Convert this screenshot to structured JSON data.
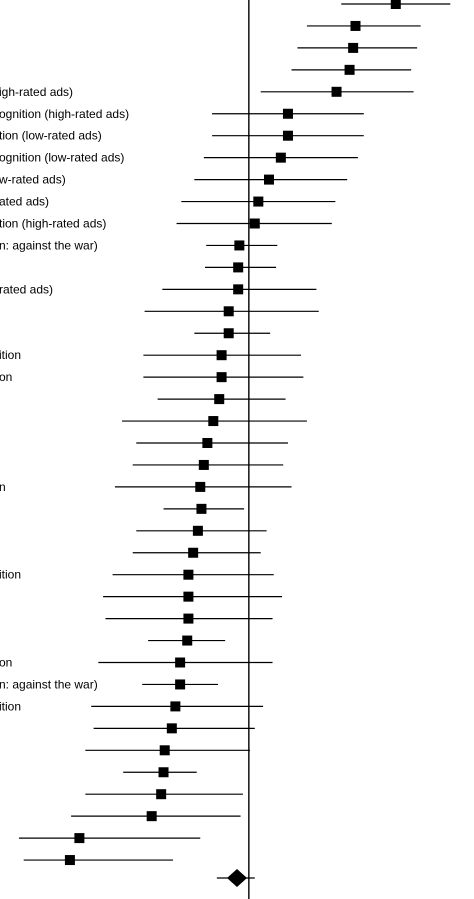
{
  "chart_data": {
    "type": "forest",
    "title": "",
    "xlabel": "",
    "ylabel": "",
    "reference_line": 0,
    "grid": false,
    "legend": "none",
    "x_unit": "left edge = -2.10, right edge = 1.90 (estimated effect-size scale)",
    "colors": {
      "ink": "#000000",
      "background": "#ffffff"
    },
    "rows": [
      {
        "label": "",
        "estimate": 1.24,
        "ci_low": 0.78,
        "ci_high": 1.7
      },
      {
        "label": "",
        "estimate": 0.9,
        "ci_low": 0.49,
        "ci_high": 1.45
      },
      {
        "label": "",
        "estimate": 0.88,
        "ci_low": 0.41,
        "ci_high": 1.42
      },
      {
        "label": "",
        "estimate": 0.85,
        "ci_low": 0.36,
        "ci_high": 1.37
      },
      {
        "label": "igh-rated ads)",
        "estimate": 0.74,
        "ci_low": 0.1,
        "ci_high": 1.39
      },
      {
        "label": "ognition (high-rated ads)",
        "estimate": 0.33,
        "ci_low": -0.31,
        "ci_high": 0.97
      },
      {
        "label": "tion (low-rated ads)",
        "estimate": 0.33,
        "ci_low": -0.31,
        "ci_high": 0.97
      },
      {
        "label": "ognition (low-rated ads)",
        "estimate": 0.27,
        "ci_low": -0.38,
        "ci_high": 0.92
      },
      {
        "label": "w-rated ads)",
        "estimate": 0.17,
        "ci_low": -0.46,
        "ci_high": 0.83
      },
      {
        "label": "ated ads)",
        "estimate": 0.08,
        "ci_low": -0.57,
        "ci_high": 0.73
      },
      {
        "label": "tion (high-rated ads)",
        "estimate": 0.05,
        "ci_low": -0.61,
        "ci_high": 0.7
      },
      {
        "label": "n: against the war)",
        "estimate": -0.08,
        "ci_low": -0.36,
        "ci_high": 0.24
      },
      {
        "label": "",
        "estimate": -0.09,
        "ci_low": -0.37,
        "ci_high": 0.23
      },
      {
        "label": "rated ads)",
        "estimate": -0.09,
        "ci_low": -0.73,
        "ci_high": 0.57
      },
      {
        "label": "",
        "estimate": -0.17,
        "ci_low": -0.88,
        "ci_high": 0.59
      },
      {
        "label": "",
        "estimate": -0.17,
        "ci_low": -0.46,
        "ci_high": 0.18
      },
      {
        "label": "ition",
        "estimate": -0.23,
        "ci_low": -0.89,
        "ci_high": 0.44
      },
      {
        "label": "on",
        "estimate": -0.23,
        "ci_low": -0.89,
        "ci_high": 0.46
      },
      {
        "label": "",
        "estimate": -0.25,
        "ci_low": -0.77,
        "ci_high": 0.31
      },
      {
        "label": "",
        "estimate": -0.3,
        "ci_low": -1.07,
        "ci_high": 0.49
      },
      {
        "label": "",
        "estimate": -0.35,
        "ci_low": -0.95,
        "ci_high": 0.33
      },
      {
        "label": "",
        "estimate": -0.38,
        "ci_low": -0.98,
        "ci_high": 0.29
      },
      {
        "label": "n",
        "estimate": -0.41,
        "ci_low": -1.13,
        "ci_high": 0.36
      },
      {
        "label": "",
        "estimate": -0.4,
        "ci_low": -0.72,
        "ci_high": -0.04
      },
      {
        "label": "",
        "estimate": -0.43,
        "ci_low": -0.95,
        "ci_high": 0.15
      },
      {
        "label": "",
        "estimate": -0.47,
        "ci_low": -0.98,
        "ci_high": 0.1
      },
      {
        "label": "ition",
        "estimate": -0.51,
        "ci_low": -1.15,
        "ci_high": 0.21
      },
      {
        "label": "",
        "estimate": -0.51,
        "ci_low": -1.23,
        "ci_high": 0.28
      },
      {
        "label": "",
        "estimate": -0.51,
        "ci_low": -1.21,
        "ci_high": 0.2
      },
      {
        "label": "",
        "estimate": -0.52,
        "ci_low": -0.85,
        "ci_high": -0.2
      },
      {
        "label": "on",
        "estimate": -0.58,
        "ci_low": -1.27,
        "ci_high": 0.2
      },
      {
        "label": "n: against the war)",
        "estimate": -0.58,
        "ci_low": -0.9,
        "ci_high": -0.26
      },
      {
        "label": "ition",
        "estimate": -0.62,
        "ci_low": -1.33,
        "ci_high": 0.12
      },
      {
        "label": "",
        "estimate": -0.65,
        "ci_low": -1.31,
        "ci_high": 0.05
      },
      {
        "label": "",
        "estimate": -0.71,
        "ci_low": -1.38,
        "ci_high": 0.01
      },
      {
        "label": "",
        "estimate": -0.72,
        "ci_low": -1.06,
        "ci_high": -0.44
      },
      {
        "label": "",
        "estimate": -0.74,
        "ci_low": -1.38,
        "ci_high": -0.05
      },
      {
        "label": "",
        "estimate": -0.82,
        "ci_low": -1.5,
        "ci_high": -0.07
      },
      {
        "label": "",
        "estimate": -1.43,
        "ci_low": -1.94,
        "ci_high": -0.41
      },
      {
        "label": "",
        "estimate": -1.51,
        "ci_low": -1.9,
        "ci_high": -0.64
      }
    ],
    "summary": {
      "label": "",
      "estimate": -0.1,
      "ci_low": -0.27,
      "ci_high": 0.05
    }
  }
}
